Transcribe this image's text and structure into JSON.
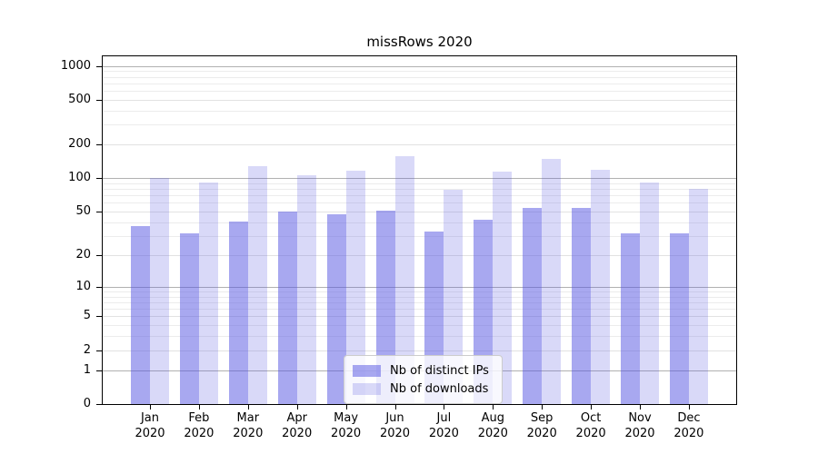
{
  "title": "missRows 2020",
  "chart_data": {
    "type": "bar",
    "title": "missRows 2020",
    "categories": [
      "Jan 2020",
      "Feb 2020",
      "Mar 2020",
      "Apr 2020",
      "May 2020",
      "Jun 2020",
      "Jul 2020",
      "Aug 2020",
      "Sep 2020",
      "Oct 2020",
      "Nov 2020",
      "Dec 2020"
    ],
    "months": [
      "Jan",
      "Feb",
      "Mar",
      "Apr",
      "May",
      "Jun",
      "Jul",
      "Aug",
      "Sep",
      "Oct",
      "Nov",
      "Dec"
    ],
    "year_label": "2020",
    "series": [
      {
        "name": "Nb of distinct IPs",
        "color": "rgba(81,81,225,0.50)",
        "values": [
          37,
          32,
          41,
          50,
          47,
          51,
          33,
          42,
          54,
          54,
          32,
          32
        ]
      },
      {
        "name": "Nb of downloads",
        "color": "rgba(81,81,225,0.22)",
        "values": [
          100,
          91,
          127,
          106,
          116,
          156,
          79,
          114,
          150,
          119,
          91,
          80
        ]
      }
    ],
    "y_axis": {
      "scale": "symlog",
      "range": [
        0,
        1000
      ],
      "tick_labels": [
        0,
        1,
        2,
        5,
        10,
        20,
        50,
        100,
        200,
        500,
        1000
      ],
      "minor_gridlines": [
        3,
        4,
        6,
        7,
        8,
        9,
        30,
        40,
        60,
        70,
        80,
        90,
        300,
        400,
        600,
        700,
        800,
        900
      ]
    },
    "x_axis": {
      "label_lines": 2
    },
    "legend": {
      "position": "bottom-center",
      "entries": [
        "Nb of distinct IPs",
        "Nb of downloads"
      ]
    },
    "colors": {
      "bar_base": "#5151e1",
      "grid_power10": "#b1b1b1",
      "grid_labeled": "#e2e2e2",
      "grid_minor": "#ececec",
      "axis": "#000000"
    },
    "grid": true
  }
}
